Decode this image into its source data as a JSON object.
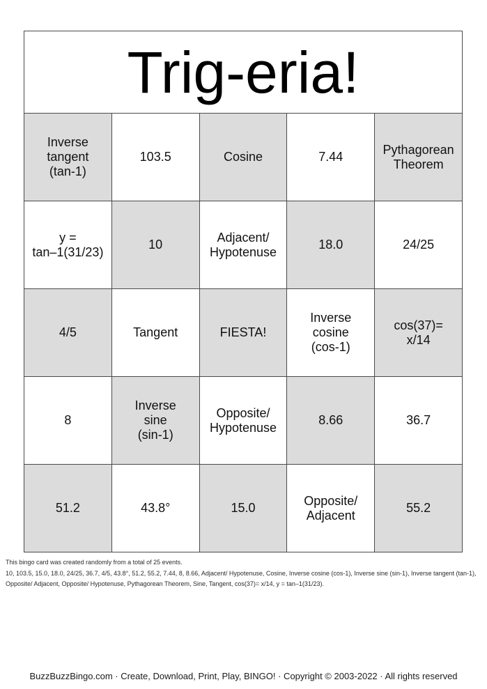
{
  "title": "Trig-eria!",
  "grid": {
    "rows": [
      [
        "Inverse\ntangent\n(tan-1)",
        "103.5",
        "Cosine",
        "7.44",
        "Pythagorean\nTheorem"
      ],
      [
        "y =\ntan–1(31/23)",
        "10",
        "Adjacent/\nHypotenuse",
        "18.0",
        "24/25"
      ],
      [
        "4/5",
        "Tangent",
        "FIESTA!",
        "Inverse\ncosine\n(cos-1)",
        "cos(37)=\nx/14"
      ],
      [
        "8",
        "Inverse\nsine\n(sin-1)",
        "Opposite/\nHypotenuse",
        "8.66",
        "36.7"
      ],
      [
        "51.2",
        "43.8°",
        "15.0",
        "Opposite/\nAdjacent",
        "55.2"
      ]
    ]
  },
  "footer": {
    "note": "This bingo card was created randomly from a total of 25 events.",
    "events_list": "10, 103.5, 15.0, 18.0, 24/25, 36.7, 4/5, 43.8°, 51.2, 55.2, 7.44, 8, 8.66, Adjacent/ Hypotenuse, Cosine, Inverse cosine (cos-1), Inverse sine (sin-1), Inverse tangent (tan-1), Opposite/ Adjacent, Opposite/ Hypotenuse, Pythagorean Theorem, Sine, Tangent, cos(37)= x/14, y = tan–1(31/23)."
  },
  "copyright": "BuzzBuzzBingo.com · Create, Download, Print, Play, BINGO! · Copyright © 2003-2022 · All rights reserved",
  "colors": {
    "shaded_cell": "#dcdcdc",
    "grid_border": "#4a4a4a"
  }
}
